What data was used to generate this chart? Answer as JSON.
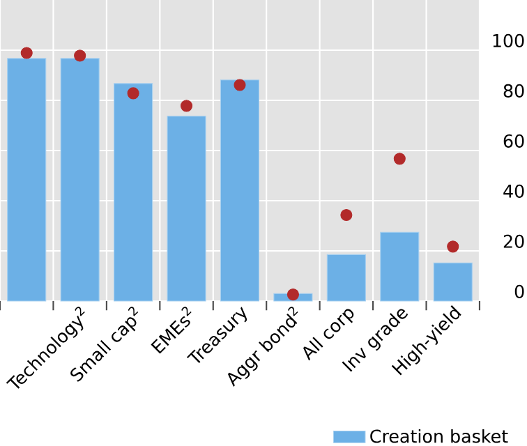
{
  "chart_data": {
    "type": "bar",
    "categories": [
      null,
      "Technology$^{2}$",
      "Small cap$^{2}$",
      "EMEs$^{2}$",
      "Treasury",
      "Aggr bond$^{2}$",
      "All corp",
      "Inv grade",
      "High-yield"
    ],
    "series": [
      {
        "name": "Creation basket",
        "color": "#6cb0e6",
        "values": [
          96.7,
          96.7,
          86.7,
          73.7,
          88.1,
          3.0,
          18.5,
          27.4,
          15.2
        ]
      },
      {
        "type": "scatter",
        "color": "#b22a2a",
        "values": [
          98.9,
          97.8,
          82.8,
          77.8,
          86.1,
          2.6,
          34.3,
          56.7,
          21.7
        ]
      }
    ],
    "ylim": [
      0,
      120
    ],
    "yticks": [
      0,
      20,
      40,
      60,
      80,
      100
    ],
    "grid": true,
    "legend": "bottom right"
  }
}
